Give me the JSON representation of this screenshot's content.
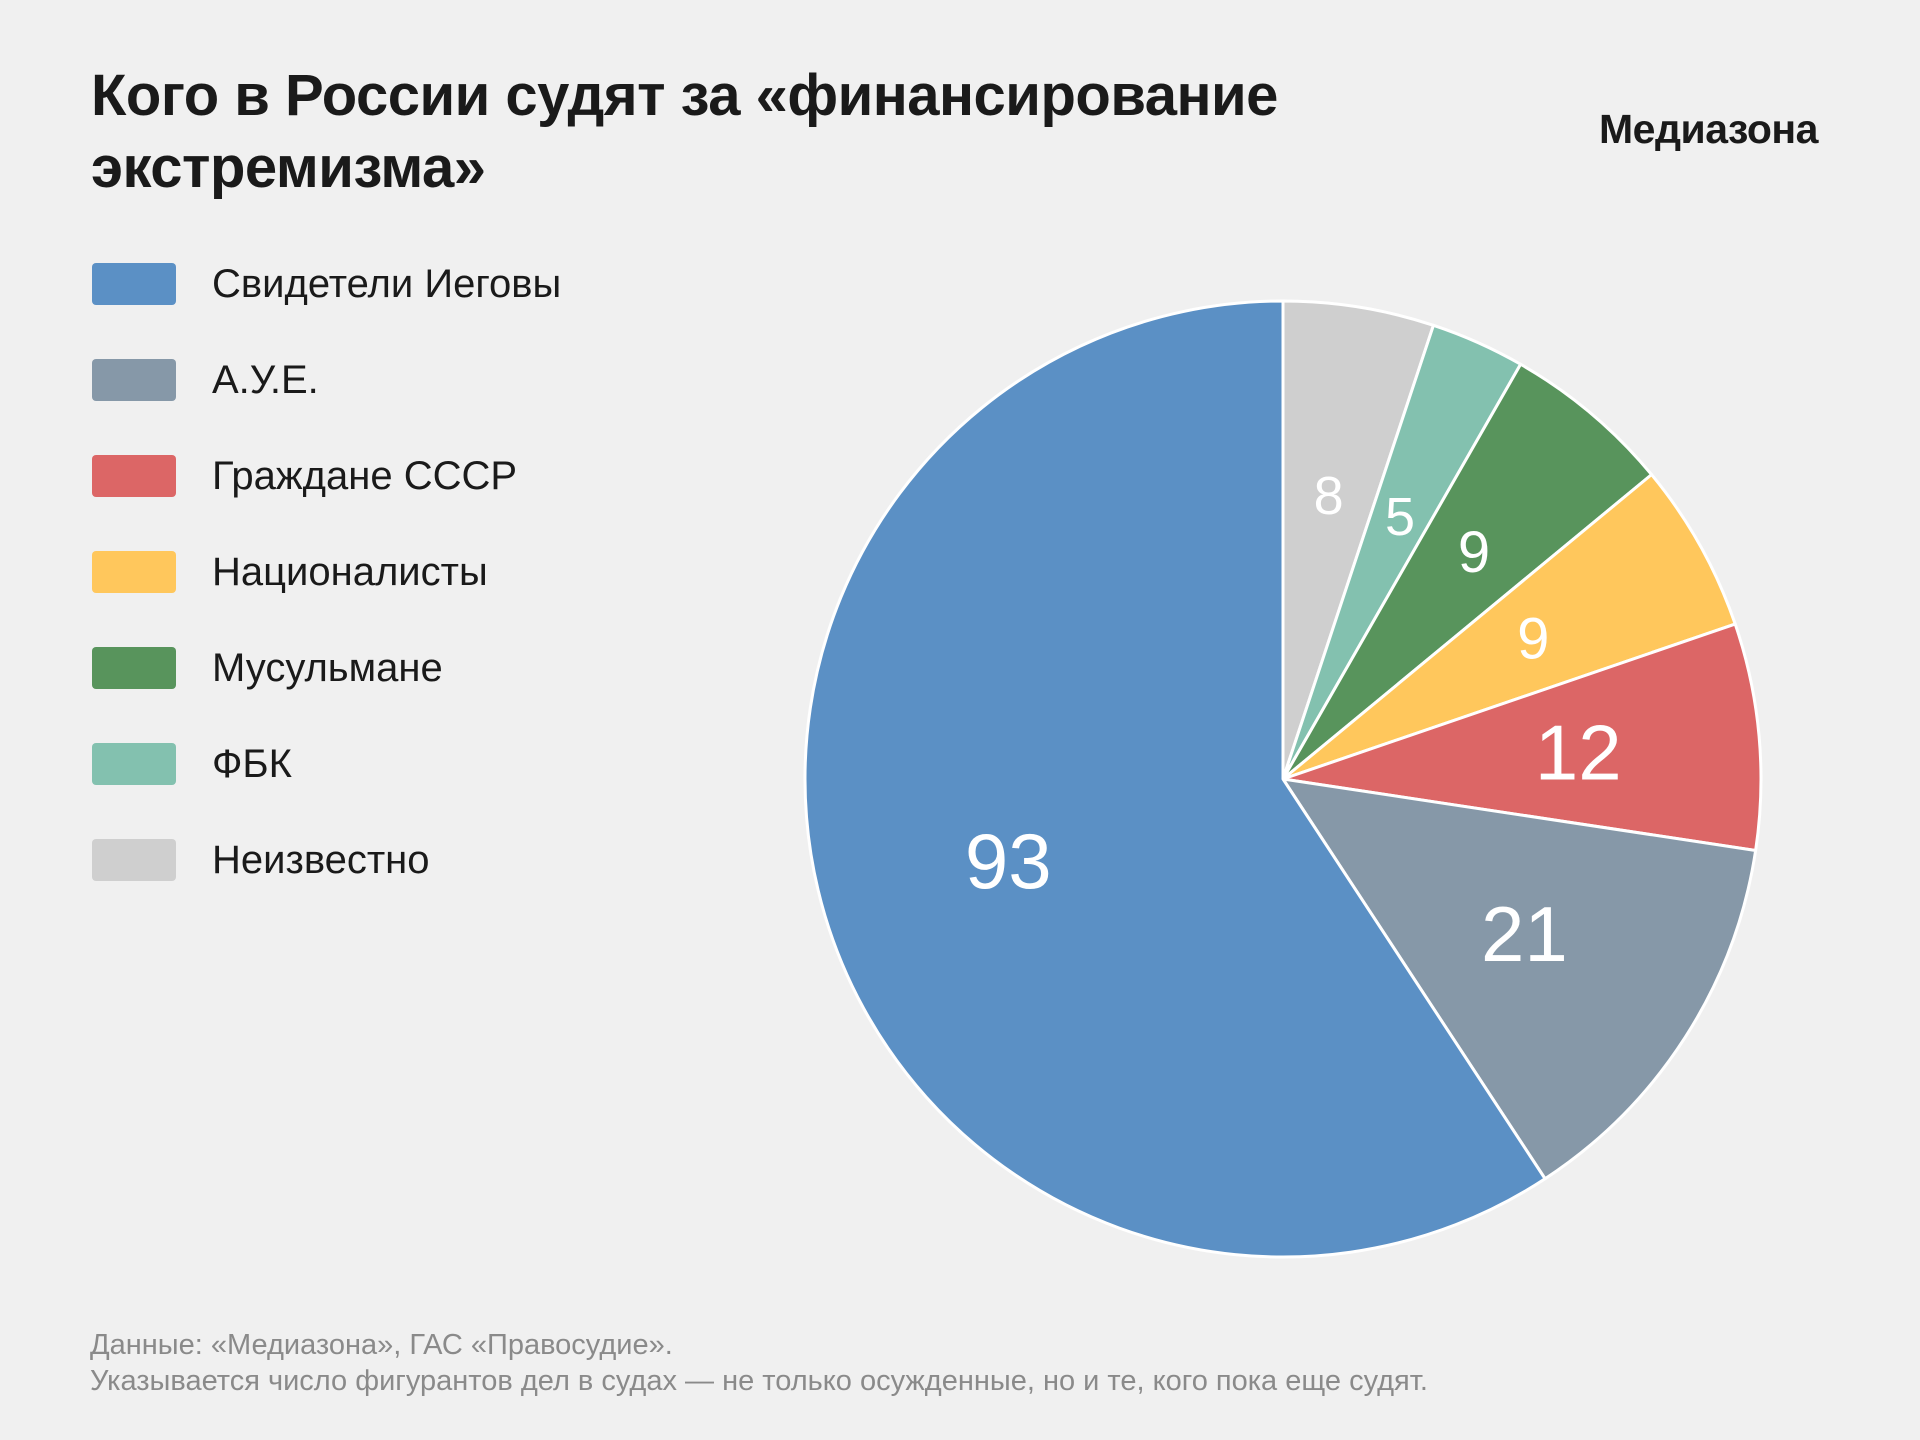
{
  "header": {
    "title": "Кого в России судят за «финансирование экстремизма»",
    "brand": "Медиазона"
  },
  "footnote": {
    "source": "Данные: «Медиазона», ГАС «Правосудие».",
    "note": "Указывается число фигурантов дел в судах — не только осужденные, но и те, кого пока еще судят."
  },
  "chart_data": {
    "type": "pie",
    "title": "Кого в России судят за «финансирование экстремизма»",
    "legend_position": "top-left",
    "categories": [
      "Свидетели Иеговы",
      "А.У.Е.",
      "Граждане СССР",
      "Националисты",
      "Мусульмане",
      "ФБК",
      "Неизвестно"
    ],
    "values": [
      93,
      21,
      12,
      9,
      9,
      5,
      8
    ],
    "colors": [
      "#5b90c5",
      "#8698a8",
      "#dc6666",
      "#ffc75c",
      "#58945c",
      "#83c1af",
      "#cfcfcf"
    ],
    "slice_order": [
      "Неизвестно",
      "ФБК",
      "Мусульмане",
      "Националисты",
      "Граждане СССР",
      "А.У.Е.",
      "Свидетели Иеговы"
    ],
    "start_angle": "12 o'clock",
    "direction": "clockwise"
  }
}
